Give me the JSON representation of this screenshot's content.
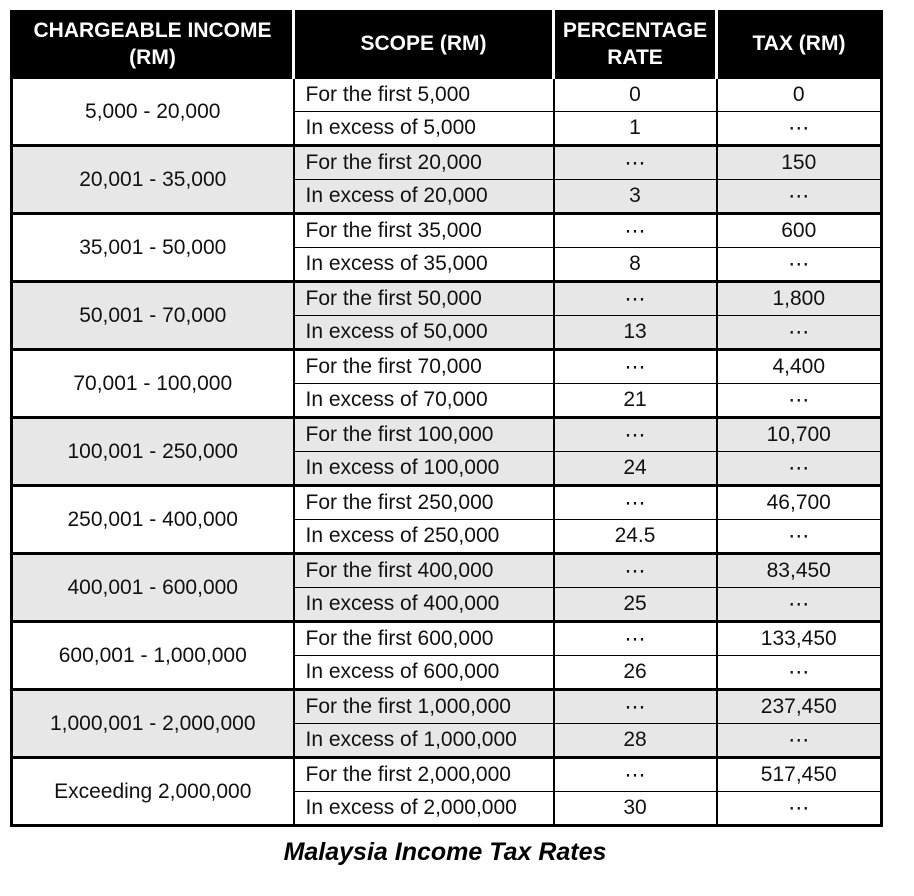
{
  "caption": "Malaysia Income Tax Rates",
  "colors": {
    "header_bg": "#000000",
    "header_text": "#ffffff",
    "stripe_bg": "#e7e7e7",
    "border": "#000000"
  },
  "table": {
    "headers": [
      "CHARGEABLE INCOME (RM)",
      "SCOPE (RM)",
      "PERCENTAGE RATE",
      "TAX (RM)"
    ],
    "groups": [
      {
        "income": "5,000 - 20,000",
        "rows": [
          {
            "scope": "For the first 5,000",
            "rate": "0",
            "tax": "0"
          },
          {
            "scope": "In excess of 5,000",
            "rate": "1",
            "tax": "⋯"
          }
        ]
      },
      {
        "income": "20,001 - 35,000",
        "rows": [
          {
            "scope": "For the first 20,000",
            "rate": "⋯",
            "tax": "150"
          },
          {
            "scope": "In excess of 20,000",
            "rate": "3",
            "tax": "⋯"
          }
        ]
      },
      {
        "income": "35,001 - 50,000",
        "rows": [
          {
            "scope": "For the first 35,000",
            "rate": "⋯",
            "tax": "600"
          },
          {
            "scope": "In excess of 35,000",
            "rate": "8",
            "tax": "⋯"
          }
        ]
      },
      {
        "income": "50,001 - 70,000",
        "rows": [
          {
            "scope": "For the first 50,000",
            "rate": "⋯",
            "tax": "1,800"
          },
          {
            "scope": "In excess of 50,000",
            "rate": "13",
            "tax": "⋯"
          }
        ]
      },
      {
        "income": "70,001 - 100,000",
        "rows": [
          {
            "scope": "For the first 70,000",
            "rate": "⋯",
            "tax": "4,400"
          },
          {
            "scope": "In excess of 70,000",
            "rate": "21",
            "tax": "⋯"
          }
        ]
      },
      {
        "income": "100,001 - 250,000",
        "rows": [
          {
            "scope": "For the first 100,000",
            "rate": "⋯",
            "tax": "10,700"
          },
          {
            "scope": "In excess of 100,000",
            "rate": "24",
            "tax": "⋯"
          }
        ]
      },
      {
        "income": "250,001 - 400,000",
        "rows": [
          {
            "scope": "For the first 250,000",
            "rate": "⋯",
            "tax": "46,700"
          },
          {
            "scope": "In excess of 250,000",
            "rate": "24.5",
            "tax": "⋯"
          }
        ]
      },
      {
        "income": "400,001 - 600,000",
        "rows": [
          {
            "scope": "For the first 400,000",
            "rate": "⋯",
            "tax": "83,450"
          },
          {
            "scope": "In excess of 400,000",
            "rate": "25",
            "tax": "⋯"
          }
        ]
      },
      {
        "income": "600,001 - 1,000,000",
        "rows": [
          {
            "scope": "For the first 600,000",
            "rate": "⋯",
            "tax": "133,450"
          },
          {
            "scope": "In excess of 600,000",
            "rate": "26",
            "tax": "⋯"
          }
        ]
      },
      {
        "income": "1,000,001 - 2,000,000",
        "rows": [
          {
            "scope": "For the first 1,000,000",
            "rate": "⋯",
            "tax": "237,450"
          },
          {
            "scope": "In excess of 1,000,000",
            "rate": "28",
            "tax": "⋯"
          }
        ]
      },
      {
        "income": "Exceeding 2,000,000",
        "rows": [
          {
            "scope": "For the first 2,000,000",
            "rate": "⋯",
            "tax": "517,450"
          },
          {
            "scope": "In excess of 2,000,000",
            "rate": "30",
            "tax": "⋯"
          }
        ]
      }
    ]
  }
}
